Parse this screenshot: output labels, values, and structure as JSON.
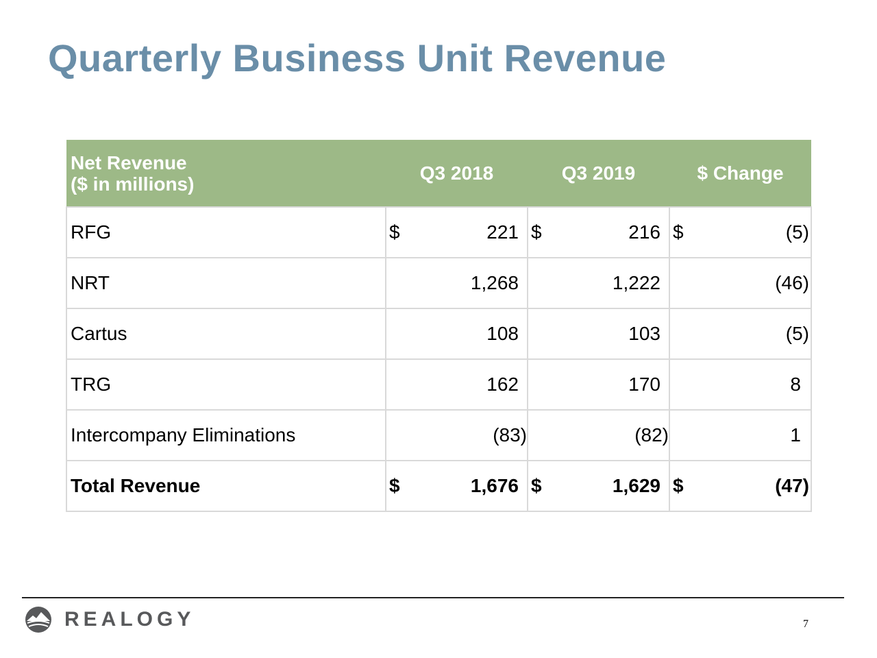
{
  "title": "Quarterly Business Unit Revenue",
  "table": {
    "header": {
      "label_line1": "Net Revenue",
      "label_line2": "($ in millions)",
      "col1": "Q3 2018",
      "col2": "Q3 2019",
      "col3": "$ Change"
    },
    "rows": [
      {
        "label": "RFG",
        "c1_cur": "$",
        "q3_2018": "221",
        "c2_cur": "$",
        "q3_2019": "216",
        "c3_cur": "$",
        "change": "(5)"
      },
      {
        "label": "NRT",
        "c1_cur": "",
        "q3_2018": "1,268",
        "c2_cur": "",
        "q3_2019": "1,222",
        "c3_cur": "",
        "change": "(46)"
      },
      {
        "label": "Cartus",
        "c1_cur": "",
        "q3_2018": "108",
        "c2_cur": "",
        "q3_2019": "103",
        "c3_cur": "",
        "change": "(5)"
      },
      {
        "label": "TRG",
        "c1_cur": "",
        "q3_2018": "162",
        "c2_cur": "",
        "q3_2019": "170",
        "c3_cur": "",
        "change": "8"
      },
      {
        "label": "Intercompany Eliminations",
        "c1_cur": "",
        "q3_2018": "(83)",
        "c2_cur": "",
        "q3_2019": "(82)",
        "c3_cur": "",
        "change": "1"
      }
    ],
    "total": {
      "label": "Total Revenue",
      "c1_cur": "$",
      "q3_2018": "1,676",
      "c2_cur": "$",
      "q3_2019": "1,629",
      "c3_cur": "$",
      "change": "(47)"
    }
  },
  "footer": {
    "logo_text": "REALOGY",
    "logo_icon": "mountain-logo-icon",
    "page_number": "7"
  }
}
